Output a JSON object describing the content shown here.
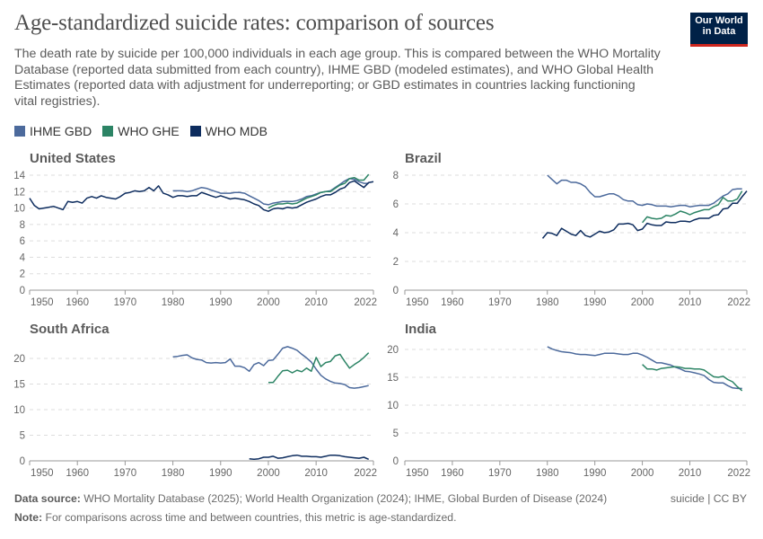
{
  "header": {
    "title": "Age-standardized suicide rates: comparison of sources",
    "subtitle": "The death rate by suicide per 100,000 individuals in each age group. This is compared between the WHO Mortality Database (reported data submitted from each country), IHME GBD (modeled estimates), and WHO Global Health Estimates (reported data with adjustment for underreporting; or GBD estimates in countries lacking functioning vital registries).",
    "logo_line1": "Our World",
    "logo_line2": "in Data"
  },
  "legend": [
    {
      "name": "IHME GBD",
      "color": "#4c6a9c"
    },
    {
      "name": "WHO GHE",
      "color": "#2c8465"
    },
    {
      "name": "WHO MDB",
      "color": "#0d2c5e"
    }
  ],
  "chart_data": [
    {
      "type": "line",
      "title": "United States",
      "xlim": [
        1950,
        2022
      ],
      "x_ticks": [
        "1950",
        "1960",
        "1970",
        "1980",
        "1990",
        "2000",
        "2010",
        "2022"
      ],
      "ylim": [
        0,
        14
      ],
      "y_ticks": [
        "0",
        "2",
        "4",
        "6",
        "8",
        "10",
        "12",
        "14"
      ],
      "grid": "horizontal dashed",
      "series": [
        {
          "name": "IHME GBD",
          "start": 1980,
          "values": [
            12.1,
            12.1,
            12.1,
            12.0,
            12.1,
            12.3,
            12.5,
            12.4,
            12.2,
            12.0,
            11.8,
            11.8,
            11.8,
            11.9,
            11.9,
            11.8,
            11.5,
            11.2,
            10.9,
            10.5,
            10.4,
            10.6,
            10.7,
            10.8,
            10.8,
            10.8,
            10.9,
            11.1,
            11.4,
            11.5,
            11.7,
            11.9,
            12.0,
            12.1,
            12.5,
            12.9,
            13.3,
            13.6,
            13.5,
            13.2,
            13.0,
            13.0
          ]
        },
        {
          "name": "WHO GHE",
          "start": 2000,
          "values": [
            10.0,
            10.3,
            10.5,
            10.5,
            10.6,
            10.5,
            10.6,
            10.9,
            11.2,
            11.4,
            11.6,
            11.9,
            12.0,
            12.0,
            12.4,
            12.8,
            13.0,
            13.6,
            13.7,
            13.4,
            13.4,
            14.1
          ]
        },
        {
          "name": "WHO MDB",
          "start": 1950,
          "values": [
            11.2,
            10.3,
            9.9,
            10.0,
            10.1,
            10.2,
            10.0,
            9.8,
            10.8,
            10.7,
            10.8,
            10.6,
            11.2,
            11.4,
            11.2,
            11.5,
            11.3,
            11.2,
            11.1,
            11.4,
            11.8,
            11.9,
            12.1,
            12.0,
            12.1,
            12.5,
            12.1,
            12.7,
            11.8,
            11.6,
            11.3,
            11.5,
            11.5,
            11.4,
            11.5,
            11.5,
            11.9,
            11.7,
            11.5,
            11.3,
            11.5,
            11.3,
            11.1,
            11.2,
            11.1,
            11.0,
            10.8,
            10.5,
            10.3,
            9.8,
            9.6,
            9.9,
            10.0,
            9.9,
            10.1,
            10.0,
            10.1,
            10.4,
            10.7,
            10.9,
            11.1,
            11.4,
            11.6,
            11.6,
            11.9,
            12.3,
            12.5,
            13.1,
            13.3,
            12.9,
            12.5,
            13.1,
            13.2
          ]
        }
      ]
    },
    {
      "type": "line",
      "title": "Brazil",
      "xlim": [
        1950,
        2022
      ],
      "x_ticks": [
        "1950",
        "1960",
        "1970",
        "1980",
        "1990",
        "2000",
        "2010",
        "2022"
      ],
      "ylim": [
        0,
        8
      ],
      "y_ticks": [
        "0",
        "2",
        "4",
        "6",
        "8"
      ],
      "grid": "horizontal dashed",
      "series": [
        {
          "name": "IHME GBD",
          "start": 1980,
          "values": [
            8.0,
            7.7,
            7.4,
            7.65,
            7.65,
            7.5,
            7.5,
            7.4,
            7.2,
            6.8,
            6.5,
            6.5,
            6.6,
            6.7,
            6.7,
            6.55,
            6.3,
            6.2,
            6.2,
            5.95,
            5.9,
            6.0,
            5.95,
            5.85,
            5.85,
            5.85,
            5.8,
            5.85,
            5.9,
            5.9,
            5.8,
            5.85,
            5.9,
            5.9,
            5.9,
            6.05,
            6.3,
            6.55,
            6.7,
            7.0,
            7.05,
            7.05
          ]
        },
        {
          "name": "WHO GHE",
          "start": 2000,
          "values": [
            4.7,
            5.1,
            5.0,
            4.95,
            5.0,
            5.2,
            5.15,
            5.3,
            5.5,
            5.4,
            5.25,
            5.4,
            5.5,
            5.6,
            5.6,
            5.8,
            5.95,
            6.45,
            6.2,
            6.2,
            6.35,
            6.9
          ]
        },
        {
          "name": "WHO MDB",
          "start": 1979,
          "values": [
            3.6,
            4.0,
            3.95,
            3.8,
            4.3,
            4.1,
            3.9,
            3.8,
            4.15,
            3.8,
            3.7,
            3.9,
            4.1,
            4.0,
            4.05,
            4.2,
            4.6,
            4.6,
            4.65,
            4.55,
            4.15,
            4.25,
            4.65,
            4.55,
            4.5,
            4.5,
            4.75,
            4.7,
            4.7,
            4.8,
            4.8,
            4.75,
            4.9,
            5.0,
            5.0,
            5.0,
            5.2,
            5.25,
            5.65,
            5.7,
            6.05,
            6.05,
            6.5,
            6.9
          ]
        }
      ]
    },
    {
      "type": "line",
      "title": "South Africa",
      "xlim": [
        1950,
        2022
      ],
      "x_ticks": [
        "1950",
        "1960",
        "1970",
        "1980",
        "1990",
        "2000",
        "2010",
        "2022"
      ],
      "ylim": [
        0,
        20
      ],
      "y_ticks": [
        "0",
        "5",
        "10",
        "15",
        "20"
      ],
      "grid": "horizontal dashed",
      "series": [
        {
          "name": "IHME GBD",
          "start": 1980,
          "values": [
            20.3,
            20.4,
            20.6,
            20.7,
            20.1,
            19.8,
            19.7,
            19.2,
            19.1,
            19.2,
            19.1,
            19.2,
            19.9,
            18.5,
            18.5,
            18.2,
            17.5,
            18.8,
            19.2,
            18.6,
            19.6,
            19.7,
            20.8,
            22.0,
            22.3,
            22.0,
            21.6,
            20.8,
            20.1,
            19.3,
            17.9,
            16.7,
            16.0,
            15.5,
            15.2,
            15.1,
            14.9,
            14.3,
            14.2,
            14.3,
            14.5,
            14.7
          ]
        },
        {
          "name": "WHO GHE",
          "start": 2000,
          "values": [
            15.3,
            15.3,
            16.5,
            17.6,
            17.7,
            17.2,
            17.7,
            17.4,
            18.1,
            17.5,
            20.2,
            18.4,
            19.2,
            19.4,
            20.5,
            20.8,
            19.4,
            18.1,
            18.8,
            19.4,
            20.2,
            21.1
          ]
        },
        {
          "name": "WHO MDB",
          "start": 1996,
          "values": [
            0.4,
            0.3,
            0.4,
            0.7,
            0.7,
            0.9,
            0.5,
            0.6,
            0.8,
            1.0,
            1.1,
            0.9,
            0.9,
            0.8,
            0.8,
            0.7,
            0.9,
            1.1,
            1.1,
            1.0,
            0.8,
            0.7,
            0.6,
            0.5,
            0.7,
            0.3
          ]
        }
      ]
    },
    {
      "type": "line",
      "title": "India",
      "xlim": [
        1950,
        2022
      ],
      "x_ticks": [
        "1950",
        "1960",
        "1970",
        "1980",
        "1990",
        "2000",
        "2010",
        "2022"
      ],
      "ylim": [
        0,
        20
      ],
      "y_ticks": [
        "0",
        "5",
        "10",
        "15",
        "20"
      ],
      "grid": "horizontal dashed",
      "series": [
        {
          "name": "IHME GBD",
          "start": 1980,
          "values": [
            20.5,
            20.1,
            19.8,
            19.6,
            19.5,
            19.4,
            19.2,
            19.1,
            19.1,
            19.0,
            18.9,
            19.1,
            19.3,
            19.3,
            19.3,
            19.2,
            19.1,
            19.1,
            19.3,
            19.3,
            19.0,
            18.6,
            18.1,
            17.6,
            17.6,
            17.4,
            17.2,
            16.8,
            16.5,
            16.1,
            16.0,
            15.8,
            15.6,
            15.3,
            14.6,
            14.1,
            14.0,
            14.0,
            13.5,
            13.1,
            13.0,
            13.0
          ]
        },
        {
          "name": "WHO GHE",
          "start": 2000,
          "values": [
            17.3,
            16.5,
            16.5,
            16.3,
            16.6,
            16.7,
            16.8,
            16.9,
            16.8,
            16.6,
            16.6,
            16.5,
            16.5,
            16.3,
            15.7,
            15.1,
            15.0,
            15.2,
            14.6,
            14.2,
            13.3,
            12.6
          ]
        }
      ]
    }
  ],
  "footer": {
    "source_label": "Data source:",
    "source_text": " WHO Mortality Database (2025); World Health Organization (2024); IHME, Global Burden of Disease (2024)",
    "note_label": "Note:",
    "note_text": " For comparisons across time and between countries, this metric is age-standardized.",
    "right": "suicide | CC BY"
  }
}
